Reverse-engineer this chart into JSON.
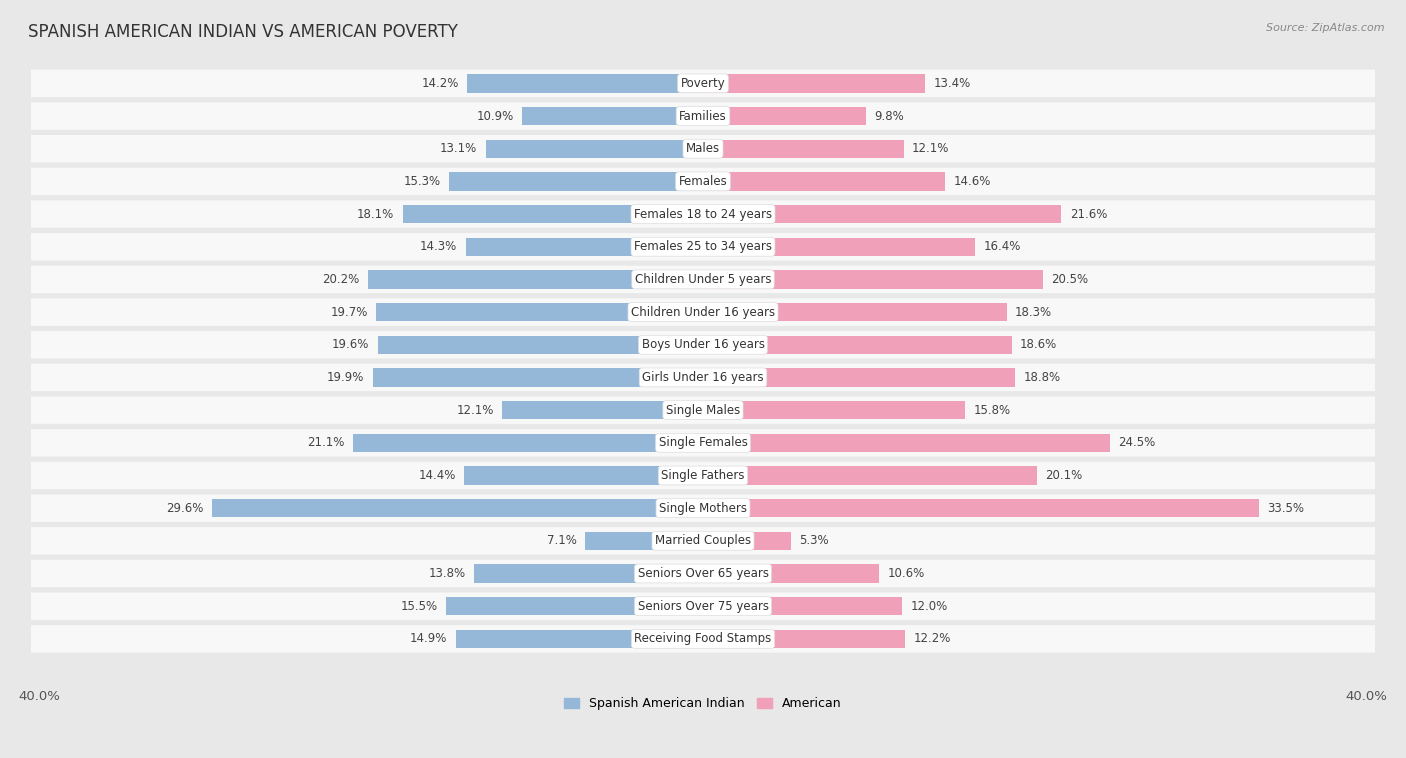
{
  "title": "SPANISH AMERICAN INDIAN VS AMERICAN POVERTY",
  "source": "Source: ZipAtlas.com",
  "categories": [
    "Poverty",
    "Families",
    "Males",
    "Females",
    "Females 18 to 24 years",
    "Females 25 to 34 years",
    "Children Under 5 years",
    "Children Under 16 years",
    "Boys Under 16 years",
    "Girls Under 16 years",
    "Single Males",
    "Single Females",
    "Single Fathers",
    "Single Mothers",
    "Married Couples",
    "Seniors Over 65 years",
    "Seniors Over 75 years",
    "Receiving Food Stamps"
  ],
  "left_vals": [
    14.2,
    10.9,
    13.1,
    15.3,
    18.1,
    14.3,
    20.2,
    19.7,
    19.6,
    19.9,
    12.1,
    21.1,
    14.4,
    29.6,
    7.1,
    13.8,
    15.5,
    14.9
  ],
  "right_vals": [
    13.4,
    9.8,
    12.1,
    14.6,
    21.6,
    16.4,
    20.5,
    18.3,
    18.6,
    18.8,
    15.8,
    24.5,
    20.1,
    33.5,
    5.3,
    10.6,
    12.0,
    12.2
  ],
  "left_color": "#96b8d8",
  "right_color": "#f0a0b8",
  "label_left": "Spanish American Indian",
  "label_right": "American",
  "x_max": 40.0,
  "bg_color": "#e8e8e8",
  "row_bg_color": "#f8f8f8",
  "title_fontsize": 12,
  "source_fontsize": 8,
  "category_fontsize": 8.5,
  "value_fontsize": 8.5,
  "legend_fontsize": 9
}
